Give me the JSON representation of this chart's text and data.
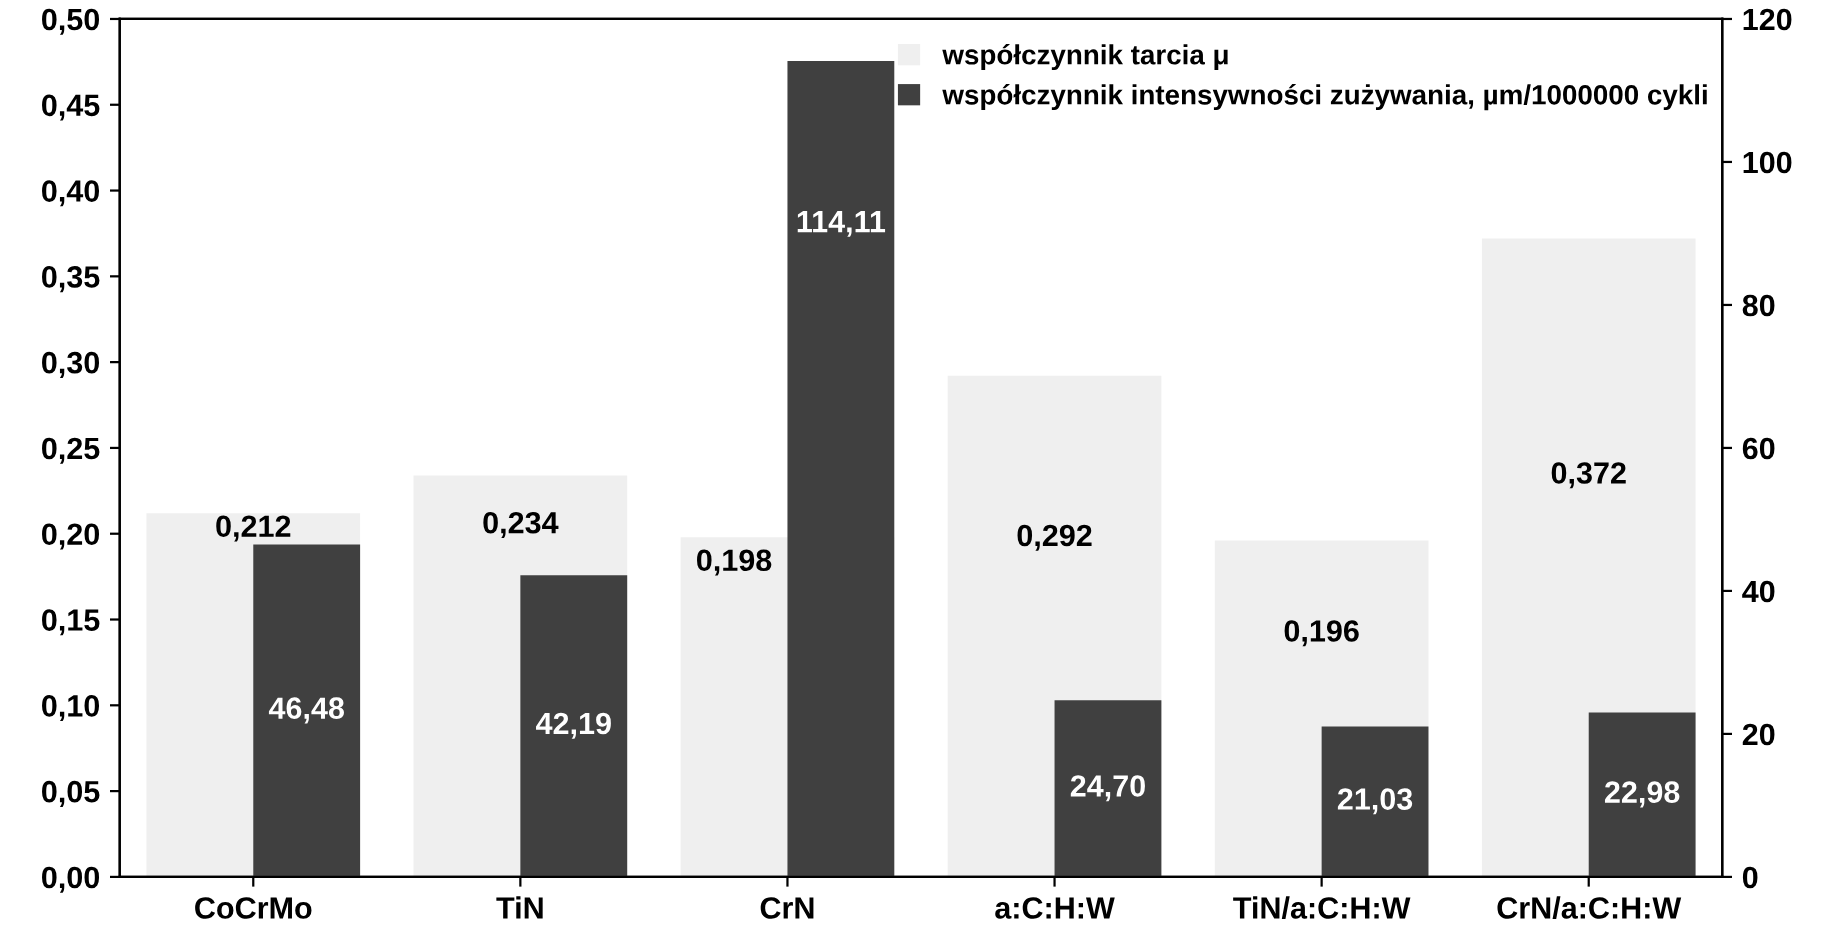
{
  "chart_data": {
    "type": "bar",
    "categories": [
      "CoCrMo",
      "TiN",
      "CrN",
      "a:C:H:W",
      "TiN/a:C:H:W",
      "CrN/a:C:H:W"
    ],
    "series": [
      {
        "name": "współczynnik tarcia μ",
        "color": "#efefef",
        "values": [
          0.212,
          0.234,
          0.198,
          0.292,
          0.196,
          0.372
        ],
        "value_labels": [
          "0,212",
          "0,234",
          "0,198",
          "0,292",
          "0,196",
          "0,372"
        ]
      },
      {
        "name": "współczynnik intensywności zużywania, µm/1000000 cykli",
        "color": "#404040",
        "axis": "y2",
        "values": [
          46.48,
          42.19,
          114.11,
          24.7,
          21.03,
          22.98
        ],
        "value_labels": [
          "46,48",
          "42,19",
          "114,11",
          "24,70",
          "21,03",
          "22,98"
        ]
      }
    ],
    "ylim": [
      0,
      0.5
    ],
    "yticks": [
      {
        "value": 0,
        "label": "0,00"
      },
      {
        "value": 0.05,
        "label": "0,05"
      },
      {
        "value": 0.1,
        "label": "0,10"
      },
      {
        "value": 0.15,
        "label": "0,15"
      },
      {
        "value": 0.2,
        "label": "0,20"
      },
      {
        "value": 0.25,
        "label": "0,25"
      },
      {
        "value": 0.3,
        "label": "0,30"
      },
      {
        "value": 0.35,
        "label": "0,35"
      },
      {
        "value": 0.4,
        "label": "0,40"
      },
      {
        "value": 0.45,
        "label": "0,45"
      },
      {
        "value": 0.5,
        "label": "0,50"
      }
    ],
    "y2lim": [
      0,
      120
    ],
    "y2ticks": [
      0,
      20,
      40,
      60,
      80,
      100,
      120
    ],
    "legend": "top",
    "grid": false
  }
}
